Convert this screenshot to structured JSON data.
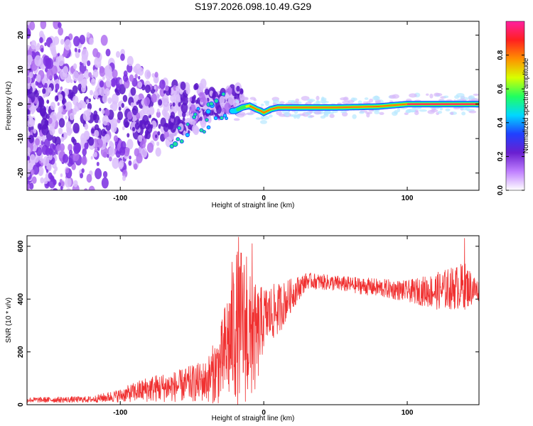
{
  "title": "S197.2026.098.10.49.G29",
  "chart_data": [
    {
      "type": "heatmap",
      "xlabel": "Height of straight line (km)",
      "ylabel": "Frequency (Hz)",
      "xlim": [
        -165,
        150
      ],
      "ylim": [
        -25,
        24
      ],
      "xticks": [
        -100,
        0,
        100
      ],
      "yticks": [
        -20,
        -10,
        0,
        10,
        20
      ],
      "colorbar": {
        "label": "Normalized spectral amplitude",
        "range": [
          0,
          1
        ],
        "ticks": [
          "0.0",
          "0.2",
          "0.4",
          "0.6",
          "0.8"
        ],
        "tick_values": [
          0,
          0.2,
          0.4,
          0.6,
          0.8
        ],
        "colors": [
          "#ffffff",
          "#c080ff",
          "#6a1fd0",
          "#2040ff",
          "#00d8ff",
          "#20ff60",
          "#d8ff00",
          "#ff9000",
          "#ff2020",
          "#ff20a0"
        ]
      },
      "ridge": {
        "description_points_x": [
          -20,
          -15,
          -10,
          -5,
          -2,
          0,
          5,
          10,
          20,
          50,
          80,
          100,
          120,
          148
        ],
        "description_points_y": [
          -2,
          -1,
          -0.5,
          -1.5,
          -2,
          -2.5,
          -1.5,
          -1,
          -1,
          -1,
          -0.7,
          0,
          0,
          0
        ]
      }
    },
    {
      "type": "line",
      "xlabel": "Height of straight line (km)",
      "ylabel": "SNR (10 * v/v)",
      "xlim": [
        -165,
        150
      ],
      "ylim": [
        0,
        640
      ],
      "xticks": [
        -100,
        0,
        100
      ],
      "yticks": [
        0,
        200,
        400,
        600
      ],
      "color": "#f03030",
      "envelope": [
        {
          "x": -165,
          "mean": 18,
          "spread": 10
        },
        {
          "x": -120,
          "mean": 20,
          "spread": 12
        },
        {
          "x": -100,
          "mean": 35,
          "spread": 25
        },
        {
          "x": -80,
          "mean": 60,
          "spread": 50
        },
        {
          "x": -60,
          "mean": 70,
          "spread": 60
        },
        {
          "x": -40,
          "mean": 90,
          "spread": 80
        },
        {
          "x": -30,
          "mean": 150,
          "spread": 150
        },
        {
          "x": -20,
          "mean": 300,
          "spread": 300
        },
        {
          "x": -15,
          "mean": 300,
          "spread": 300
        },
        {
          "x": -10,
          "mean": 250,
          "spread": 250
        },
        {
          "x": -5,
          "mean": 250,
          "spread": 200
        },
        {
          "x": 0,
          "mean": 330,
          "spread": 120
        },
        {
          "x": 10,
          "mean": 360,
          "spread": 100
        },
        {
          "x": 20,
          "mean": 420,
          "spread": 60
        },
        {
          "x": 30,
          "mean": 470,
          "spread": 30
        },
        {
          "x": 60,
          "mean": 455,
          "spread": 30
        },
        {
          "x": 100,
          "mean": 430,
          "spread": 40
        },
        {
          "x": 120,
          "mean": 430,
          "spread": 70
        },
        {
          "x": 140,
          "mean": 450,
          "spread": 90
        },
        {
          "x": 150,
          "mean": 430,
          "spread": 40
        }
      ],
      "peaks": [
        {
          "x": -17.5,
          "y": 635
        },
        {
          "x": -8,
          "y": 610
        },
        {
          "x": -22,
          "y": 540
        },
        {
          "x": -12,
          "y": 560
        },
        {
          "x": 140,
          "y": 630
        }
      ]
    }
  ]
}
